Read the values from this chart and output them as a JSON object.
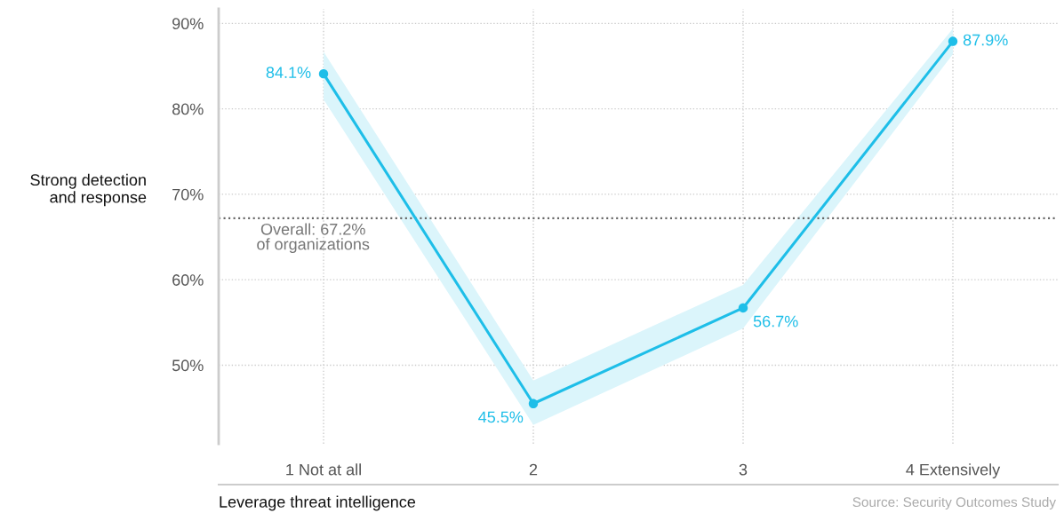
{
  "chart_data": {
    "type": "line",
    "xlabel": "Leverage threat intelligence",
    "ylabel": "Strong detection\nand response",
    "categories": [
      "1 Not at all",
      "2",
      "3",
      "4 Extensively"
    ],
    "series": [
      {
        "color": "#1ebee8",
        "values": [
          84.1,
          45.5,
          56.7,
          87.9
        ],
        "lower": [
          81.1,
          43.0,
          54.3,
          86.4
        ],
        "upper": [
          86.7,
          48.2,
          59.4,
          89.4
        ]
      }
    ],
    "value_labels": [
      "84.1%",
      "45.5%",
      "56.7%",
      "87.9%"
    ],
    "ylim": [
      40.8,
      91.7
    ],
    "yticks": [
      {
        "value": 50,
        "label": "50%"
      },
      {
        "value": 60,
        "label": "60%"
      },
      {
        "value": 70,
        "label": "70%"
      },
      {
        "value": 80,
        "label": "80%"
      },
      {
        "value": 90,
        "label": "90%"
      }
    ],
    "ref_lines": [
      {
        "axis": "y",
        "value": 67.2,
        "label": "Overall: 67.2%\nof organizations",
        "color": "#666666",
        "line_style": "dotted"
      }
    ],
    "annotations": [
      "Source: Security Outcomes Study"
    ],
    "grid": true,
    "marker": "circle",
    "line_style": "solid",
    "legend": false
  }
}
